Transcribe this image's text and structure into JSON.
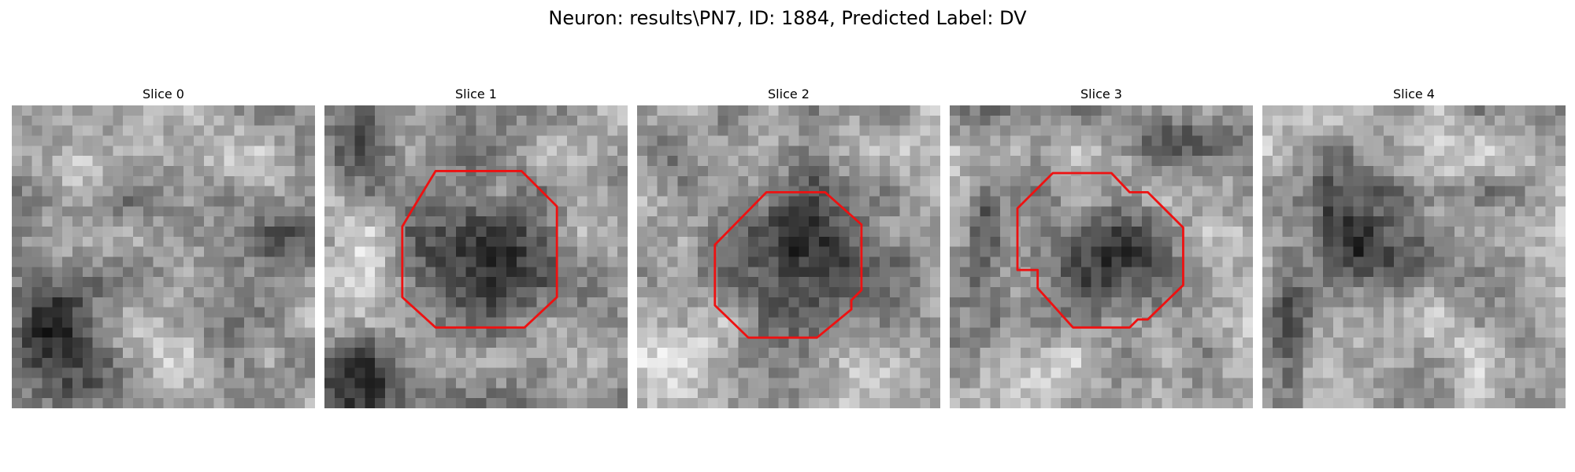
{
  "figure": {
    "title": "Neuron: results\\PN7, ID: 1884, Predicted Label: DV",
    "outline_color": "#ee1111",
    "image_colormap": "gray"
  },
  "panels": [
    {
      "title": "Slice 0",
      "has_outline": false
    },
    {
      "title": "Slice 1",
      "has_outline": true
    },
    {
      "title": "Slice 2",
      "has_outline": true
    },
    {
      "title": "Slice 3",
      "has_outline": true
    },
    {
      "title": "Slice 4",
      "has_outline": false
    }
  ]
}
